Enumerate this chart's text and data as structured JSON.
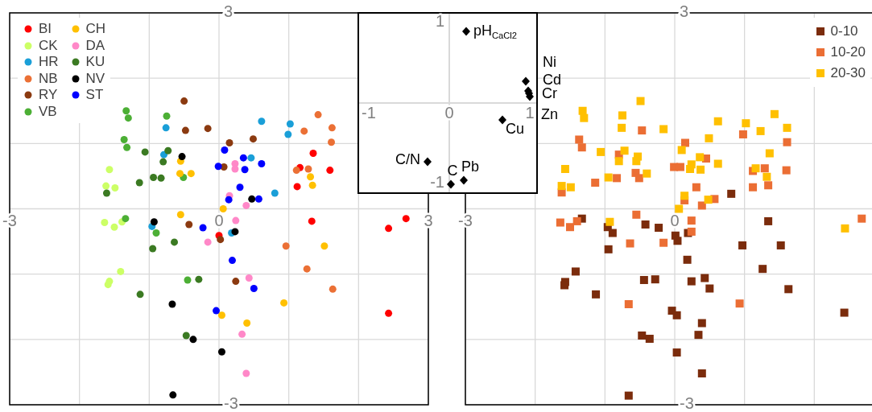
{
  "chart_data": [
    {
      "type": "scatter",
      "marker": "circle",
      "grid": true,
      "legend": "top left",
      "xlim": [
        -3,
        3
      ],
      "ylim": [
        -3,
        3
      ],
      "xticks": [
        -3,
        {
          "value": -2,
          "label": null
        },
        {
          "value": -1,
          "label": null
        },
        0,
        {
          "value": 1,
          "label": null
        },
        {
          "value": 2,
          "label": null
        },
        3
      ],
      "yticks": [
        -3,
        {
          "value": -2,
          "label": null
        },
        {
          "value": -1,
          "label": null
        },
        {
          "value": 0,
          "label": null
        },
        {
          "value": 1,
          "label": null
        },
        {
          "value": 2,
          "label": null
        },
        3
      ],
      "series": [
        {
          "name": "BI",
          "color": "#ff0000",
          "x": [
            0.0,
            1.35,
            1.16,
            1.59,
            1.12,
            1.33,
            2.68,
            2.43,
            2.43
          ],
          "values": [
            -0.41,
            0.85,
            0.63,
            0.59,
            0.34,
            -0.19,
            -0.15,
            -0.3,
            -1.6
          ]
        },
        {
          "name": "CK",
          "color": "#ccff66",
          "x": [
            -1.57,
            -1.62,
            -1.49,
            -1.64,
            -1.5,
            -1.39,
            -1.41,
            -1.57,
            -1.59
          ],
          "values": [
            0.6,
            0.35,
            0.32,
            -0.21,
            -0.28,
            -0.2,
            -0.96,
            -1.11,
            -1.16
          ]
        },
        {
          "name": "HR",
          "color": "#1a9fd8",
          "x": [
            -0.76,
            -0.79,
            -0.96,
            0.18,
            0.61,
            1.02,
            0.99,
            0.46,
            0.8
          ],
          "values": [
            1.24,
            0.83,
            -0.27,
            -0.37,
            1.34,
            1.3,
            1.14,
            0.78,
            0.24
          ]
        },
        {
          "name": "NB",
          "color": "#eb7035",
          "x": [
            1.42,
            1.62,
            1.22,
            1.61,
            1.11,
            1.28,
            0.96,
            1.26,
            1.63
          ],
          "values": [
            1.44,
            1.24,
            1.19,
            1.02,
            0.59,
            0.61,
            -0.57,
            -0.92,
            -1.23
          ]
        },
        {
          "name": "RY",
          "color": "#8b3a10",
          "x": [
            -0.5,
            -0.48,
            -0.16,
            0.07,
            -0.43,
            0.02,
            0.24,
            0.15,
            0.49
          ],
          "values": [
            1.65,
            1.2,
            1.23,
            0.64,
            -0.24,
            -0.47,
            -1.11,
            1.01,
            1.07
          ]
        },
        {
          "name": "VB",
          "color": "#4caf35",
          "x": [
            -1.33,
            -1.3,
            -0.75,
            -1.36,
            -1.32,
            -0.51,
            -1.34,
            -0.9,
            -0.45
          ],
          "values": [
            1.5,
            1.39,
            1.42,
            1.06,
            0.94,
            0.48,
            -0.15,
            -0.37,
            -1.09
          ]
        },
        {
          "name": "CH",
          "color": "#ffc000",
          "x": [
            -0.55,
            -0.56,
            -0.4,
            0.06,
            -0.55,
            1.51,
            1.31,
            1.34,
            0.93,
            0.04,
            0.4
          ],
          "values": [
            0.73,
            0.54,
            0.54,
            0.0,
            -0.09,
            -0.57,
            0.49,
            0.36,
            -1.44,
            -1.63,
            -1.75
          ]
        },
        {
          "name": "DA",
          "color": "#ff88c8",
          "x": [
            -0.16,
            0.43,
            0.33,
            0.39,
            0.23,
            0.23,
            0.15,
            0.39,
            0.24
          ],
          "values": [
            -0.51,
            -1.06,
            -1.92,
            -2.52,
            0.69,
            0.61,
            0.2,
            0.05,
            -0.18
          ]
        },
        {
          "name": "KU",
          "color": "#3b7a22",
          "x": [
            -1.06,
            -0.73,
            -0.8,
            -0.94,
            -0.83,
            -1.14,
            -1.61,
            -0.64,
            -0.95,
            -0.29,
            -1.13,
            -0.47
          ],
          "values": [
            0.87,
            0.89,
            0.72,
            0.48,
            0.47,
            0.4,
            0.24,
            -0.51,
            -0.61,
            -1.08,
            -1.31,
            -1.94
          ]
        },
        {
          "name": "NV",
          "color": "#000000",
          "x": [
            -0.53,
            -0.93,
            0.23,
            -0.67,
            -0.37,
            0.04,
            -0.66,
            0.47
          ],
          "values": [
            0.8,
            -0.2,
            -0.35,
            -1.46,
            -2.0,
            -2.19,
            -2.85,
            0.15
          ]
        },
        {
          "name": "ST",
          "color": "#0000ff",
          "x": [
            0.08,
            -0.01,
            -0.23,
            0.19,
            0.5,
            -0.04,
            0.35,
            0.61,
            0.37,
            0.3,
            0.14,
            0.57
          ],
          "values": [
            0.9,
            0.65,
            -0.29,
            -0.79,
            -1.22,
            -1.56,
            0.78,
            0.69,
            0.6,
            0.33,
            0.14,
            0.15
          ]
        }
      ]
    },
    {
      "type": "scatter",
      "marker": "diamond",
      "xlim": [
        -1.13,
        1.09
      ],
      "ylim": [
        -1.12,
        1.12
      ],
      "xticks": [
        -1,
        0,
        1
      ],
      "yticks": [
        -1,
        {
          "value": 0,
          "label": null
        },
        1
      ],
      "series": [
        {
          "name": "pH$_{CaCl2}$",
          "color": "#000000",
          "x": [
            0.21
          ],
          "values": [
            0.89
          ]
        },
        {
          "name": "Ni",
          "color": "#000000",
          "x": [
            0.95
          ],
          "values": [
            0.27
          ]
        },
        {
          "name": "Cd",
          "color": "#000000",
          "x": [
            0.98
          ],
          "values": [
            0.15
          ]
        },
        {
          "name": "Cr",
          "color": "#000000",
          "x": [
            0.99
          ],
          "values": [
            0.12
          ]
        },
        {
          "name": "Zn",
          "color": "#000000",
          "x": [
            1.0
          ],
          "values": [
            0.08
          ]
        },
        {
          "name": "Cu",
          "color": "#000000",
          "x": [
            0.66
          ],
          "values": [
            -0.21
          ]
        },
        {
          "name": "C/N",
          "color": "#000000",
          "x": [
            -0.27
          ],
          "values": [
            -0.73
          ]
        },
        {
          "name": "C",
          "color": "#000000",
          "x": [
            0.02
          ],
          "values": [
            -1.01
          ]
        },
        {
          "name": "Pb",
          "color": "#000000",
          "x": [
            0.18
          ],
          "values": [
            -0.96
          ]
        }
      ]
    },
    {
      "type": "scatter",
      "marker": "square",
      "grid": true,
      "legend": "top right",
      "xlim": [
        -3,
        3
      ],
      "ylim": [
        -3,
        3
      ],
      "xticks": [
        -3,
        {
          "value": -2,
          "label": null
        },
        {
          "value": -1,
          "label": null
        },
        0,
        {
          "value": 1,
          "label": null
        },
        {
          "value": 2,
          "label": null
        }
      ],
      "yticks": [
        -3,
        {
          "value": -2,
          "label": null
        },
        {
          "value": -1,
          "label": null
        },
        {
          "value": 0,
          "label": null
        },
        {
          "value": 1,
          "label": null
        },
        {
          "value": 2,
          "label": null
        },
        3
      ],
      "series": [
        {
          "name": "0-10",
          "color": "#7b2c0c",
          "x": [
            0.81,
            -1.33,
            -0.96,
            -0.89,
            -0.42,
            -0.23,
            0.01,
            0.04,
            0.19,
            -0.95,
            1.34,
            0.97,
            1.52,
            0.18,
            1.26,
            -1.42,
            -1.57,
            -1.58,
            -0.44,
            -0.28,
            0.24,
            0.43,
            0.5,
            1.63,
            -1.13,
            -0.04,
            0.03,
            0.39,
            2.43,
            0.34,
            -0.47,
            -0.36,
            0.03,
            0.39,
            -0.66
          ],
          "values": [
            0.23,
            -0.15,
            -0.28,
            -0.37,
            -0.24,
            -0.29,
            -0.41,
            -0.49,
            -0.37,
            -0.62,
            -0.19,
            -0.56,
            -0.56,
            -0.78,
            -0.92,
            -0.96,
            -1.12,
            -1.17,
            -1.09,
            -1.08,
            -1.11,
            -1.06,
            -1.22,
            -1.23,
            -1.31,
            -1.56,
            -1.63,
            -1.75,
            -1.59,
            -1.93,
            -1.94,
            -1.99,
            -2.2,
            -2.52,
            -2.86
          ]
        },
        {
          "name": "10-20",
          "color": "#eb6e34",
          "x": [
            -0.47,
            -1.37,
            -1.33,
            0.98,
            1.61,
            0.15,
            -0.8,
            0.45,
            -0.01,
            0.08,
            -0.56,
            -0.51,
            -0.83,
            -1.14,
            -1.62,
            1.12,
            1.29,
            1.6,
            0.31,
            1.12,
            1.34,
            0.14,
            0.57,
            0.39,
            2.68,
            -1.64,
            -1.5,
            -1.4,
            -0.55,
            0.24,
            0.24,
            -0.64,
            -0.16,
            -0.66,
            0.93
          ],
          "values": [
            1.2,
            1.06,
            0.94,
            1.14,
            1.02,
            1.01,
            0.83,
            0.77,
            0.64,
            0.64,
            0.55,
            0.47,
            0.47,
            0.4,
            0.25,
            0.58,
            0.62,
            0.59,
            0.33,
            0.33,
            0.36,
            0.13,
            0.15,
            0.05,
            -0.15,
            -0.21,
            -0.28,
            -0.19,
            -0.09,
            -0.18,
            -0.35,
            -0.53,
            -0.52,
            -1.46,
            -1.45
          ]
        },
        {
          "name": "20-30",
          "color": "#ffc000",
          "x": [
            -0.49,
            -1.32,
            -1.3,
            -0.75,
            -0.76,
            -0.16,
            0.62,
            1.02,
            1.43,
            1.23,
            1.61,
            0.49,
            0.1,
            -1.06,
            -0.72,
            -0.53,
            -0.8,
            -0.55,
            0.36,
            0.24,
            0.22,
            0.37,
            0.62,
            1.36,
            1.16,
            1.32,
            -1.57,
            -0.4,
            -0.95,
            -1.62,
            -1.49,
            0.14,
            0.48,
            0.06,
            -0.93,
            2.44
          ],
          "values": [
            1.65,
            1.5,
            1.39,
            1.43,
            1.24,
            1.22,
            1.34,
            1.31,
            1.45,
            1.19,
            1.24,
            1.08,
            0.9,
            0.87,
            0.89,
            0.8,
            0.73,
            0.73,
            0.79,
            0.68,
            0.61,
            0.6,
            0.69,
            0.85,
            0.62,
            0.49,
            0.61,
            0.54,
            0.48,
            0.35,
            0.33,
            0.2,
            0.14,
            0.0,
            -0.2,
            -0.3
          ]
        }
      ]
    }
  ]
}
